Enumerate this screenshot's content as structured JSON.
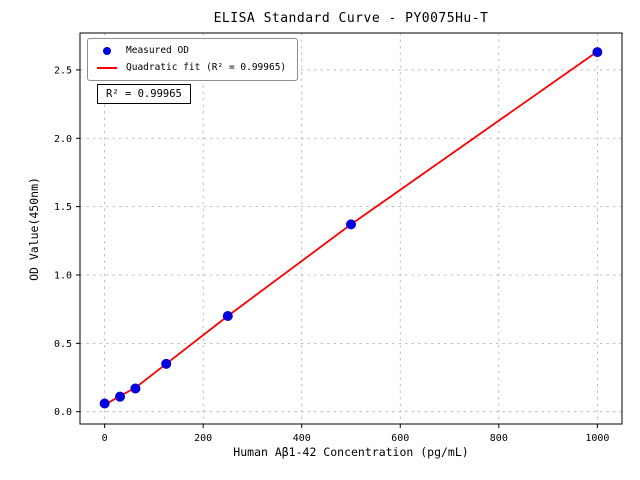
{
  "chart_data": {
    "type": "scatter",
    "title": "ELISA Standard Curve - PY0075Hu-T",
    "xlabel": "Human Aβ1-42 Concentration (pg/mL)",
    "ylabel": "OD Value(450nm)",
    "xlim": [
      -50,
      1050
    ],
    "ylim": [
      -0.09,
      2.77
    ],
    "x_ticks": [
      0,
      200,
      400,
      600,
      800,
      1000
    ],
    "x_tick_labels": [
      "0",
      "200",
      "400",
      "600",
      "800",
      "1000"
    ],
    "y_ticks": [
      0,
      0.5,
      1,
      1.5,
      2,
      2.5
    ],
    "y_tick_labels": [
      "0.0",
      "0.5",
      "1.0",
      "1.5",
      "2.0",
      "2.5"
    ],
    "grid": true,
    "legend_position": "upper left",
    "annotation": "R² = 0.99965",
    "colors": {
      "grid": "#b0b0b0",
      "axis": "#000000",
      "legend_border": "#8f8f8f",
      "background": "#ffffff"
    },
    "series": [
      {
        "name": "Measured OD",
        "type": "scatter",
        "color": "#0000dd",
        "x": [
          0,
          31.25,
          62.5,
          125,
          250,
          500,
          1000
        ],
        "y": [
          0.06,
          0.11,
          0.17,
          0.35,
          0.7,
          1.37,
          2.63
        ]
      },
      {
        "name": "Quadratic fit (R² = 0.99965)",
        "type": "line",
        "color": "#ff0000",
        "x": [
          0,
          31.25,
          62.5,
          125,
          250,
          500,
          1000
        ],
        "y": [
          0.05,
          0.115,
          0.175,
          0.35,
          0.7,
          1.37,
          2.635
        ]
      }
    ]
  }
}
